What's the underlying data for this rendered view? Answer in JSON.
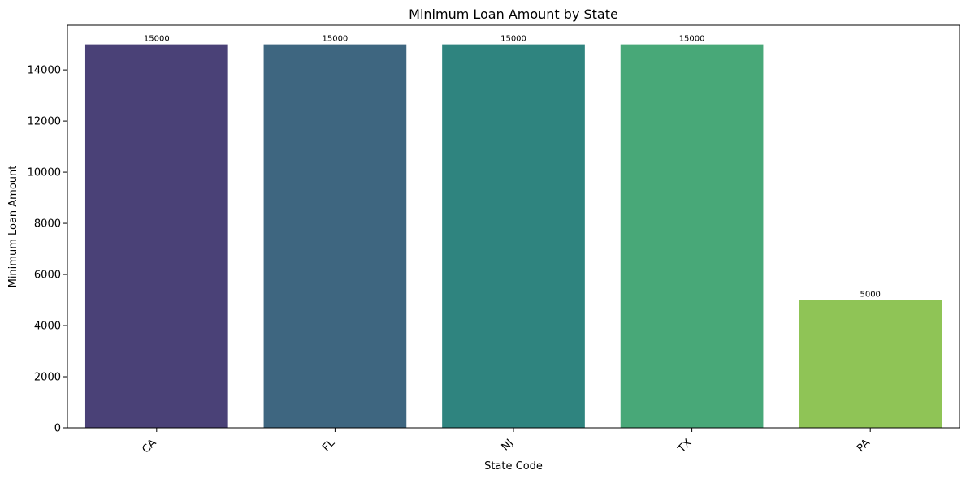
{
  "chart_data": {
    "type": "bar",
    "title": "Minimum Loan Amount by State",
    "xlabel": "State Code",
    "ylabel": "Minimum Loan Amount",
    "categories": [
      "CA",
      "FL",
      "NJ",
      "TX",
      "PA"
    ],
    "values": [
      15000,
      15000,
      15000,
      15000,
      5000
    ],
    "data_labels": [
      "15000",
      "15000",
      "15000",
      "15000",
      "5000"
    ],
    "colors": [
      "#4a4177",
      "#3e6680",
      "#2f847f",
      "#48a878",
      "#8fc456"
    ],
    "ylim": [
      0,
      15750
    ],
    "yticks": [
      0,
      2000,
      4000,
      6000,
      8000,
      10000,
      12000,
      14000
    ],
    "ytick_labels": [
      "0",
      "2000",
      "4000",
      "6000",
      "8000",
      "10000",
      "12000",
      "14000"
    ],
    "grid": false,
    "legend": "none"
  }
}
